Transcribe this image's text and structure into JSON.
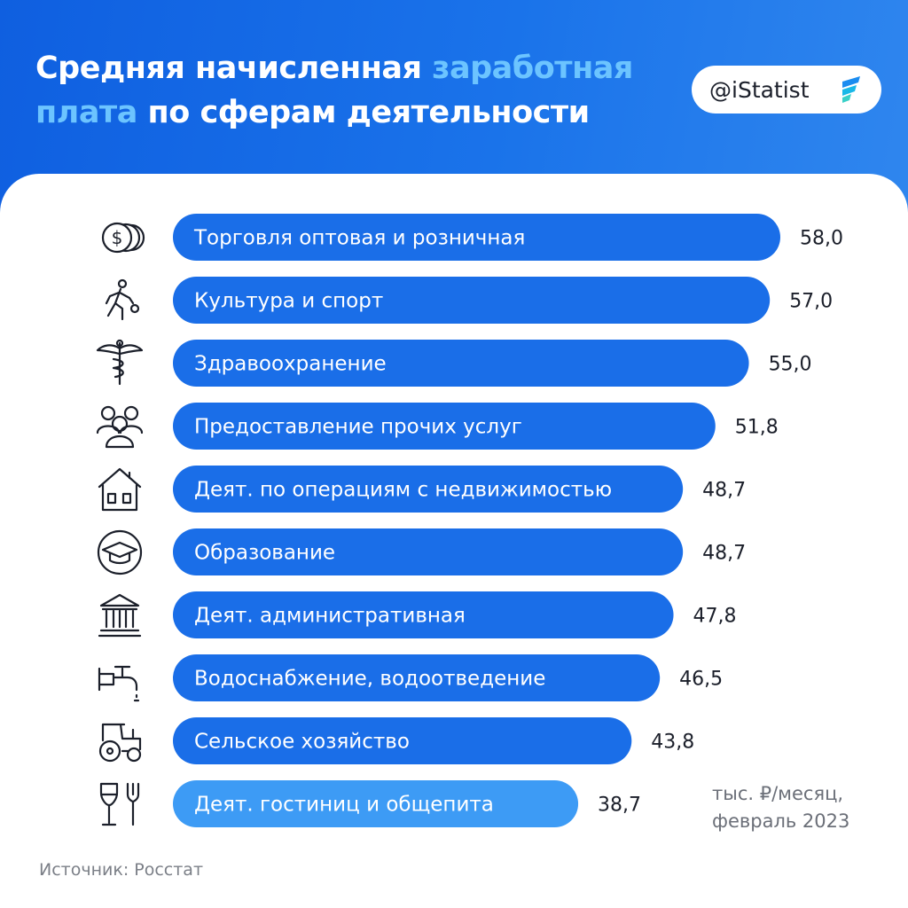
{
  "header": {
    "title_part1": "Средняя начисленная ",
    "title_accent1": "заработная",
    "title_accent2": "плата",
    "title_part2": " по сферам деятельности",
    "brand": "@iStatist"
  },
  "colors": {
    "header_bg": "#1a6ee8",
    "bar": "#1a6ee8",
    "bar_highlight": "#3d9bf5",
    "accent_text": "#6cc4ff"
  },
  "chart_data": {
    "type": "bar",
    "orientation": "horizontal",
    "categories": [
      "Торговля оптовая и розничная",
      "Культура и спорт",
      "Здравоохранение",
      "Предоставление прочих услуг",
      "Деят. по операциям с недвижимостью",
      "Образование",
      "Деят. административная",
      "Водоснабжение, водоотведение",
      "Сельское хозяйство",
      "Деят. гостиниц и общепита"
    ],
    "values": [
      58.0,
      57.0,
      55.0,
      51.8,
      48.7,
      48.7,
      47.8,
      46.5,
      43.8,
      38.7
    ],
    "value_labels": [
      "58,0",
      "57,0",
      "55,0",
      "51,8",
      "48,7",
      "48,7",
      "47,8",
      "46,5",
      "43,8",
      "38,7"
    ],
    "icons": [
      "coins-icon",
      "runner-icon",
      "caduceus-icon",
      "people-icon",
      "house-icon",
      "graduation-cap-icon",
      "government-building-icon",
      "water-tap-icon",
      "tractor-icon",
      "glass-fork-icon"
    ],
    "highlighted_index": 9,
    "unit_line1": "тыс. ₽/месяц,",
    "unit_line2": "февраль 2023"
  },
  "footer": {
    "source": "Источник: Росстат"
  }
}
